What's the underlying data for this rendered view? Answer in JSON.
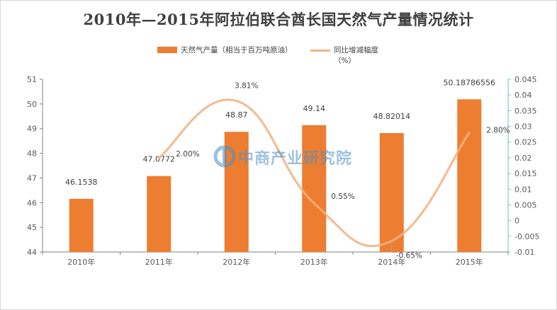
{
  "title": "2010年—2015年阿拉伯联合酋长国天然气产量情况统计",
  "legend": {
    "bar_label": "天然气产量（相当于百万吨原油）",
    "line_label": "同比增减幅度",
    "line_label_unit": "（%）"
  },
  "watermark": "中商产业研究院",
  "colors": {
    "bar": "#ED7D31",
    "line": "#F4B183",
    "axis": "#808080",
    "right_axis": "#70C0C8"
  },
  "chart_data": {
    "type": "bar",
    "title": "2010年—2015年阿拉伯联合酋长国天然气产量情况统计",
    "categories": [
      "2010年",
      "2011年",
      "2012年",
      "2013年",
      "2014年",
      "2015年"
    ],
    "series": [
      {
        "name": "天然气产量（相当于百万吨原油）",
        "type": "bar",
        "axis": "left",
        "values": [
          46.1538,
          47.0772,
          48.87,
          49.14,
          48.82014,
          50.18786556
        ],
        "labels": [
          "46.1538",
          "47.0772",
          "48.87",
          "49.14",
          "48.82014",
          "50.18786556"
        ]
      },
      {
        "name": "同比增减幅度（%）",
        "type": "line",
        "axis": "right",
        "x": [
          "2011年",
          "2012年",
          "2013年",
          "2014年",
          "2015年"
        ],
        "values": [
          0.02,
          0.0381,
          0.0055,
          -0.0065,
          0.028
        ],
        "labels": [
          "2.00%",
          "3.81%",
          "0.55%",
          "-0.65%",
          "2.80%"
        ]
      }
    ],
    "ylim": [
      44,
      51
    ],
    "yticks": [
      "44",
      "45",
      "46",
      "47",
      "48",
      "49",
      "50",
      "51"
    ],
    "y2lim": [
      -0.01,
      0.045
    ],
    "y2ticks": [
      "-0.01",
      "-0.005",
      "0",
      "0.005",
      "0.01",
      "0.015",
      "0.02",
      "0.025",
      "0.03",
      "0.035",
      "0.04",
      "0.045"
    ],
    "grid": false,
    "legend_position": "top"
  }
}
